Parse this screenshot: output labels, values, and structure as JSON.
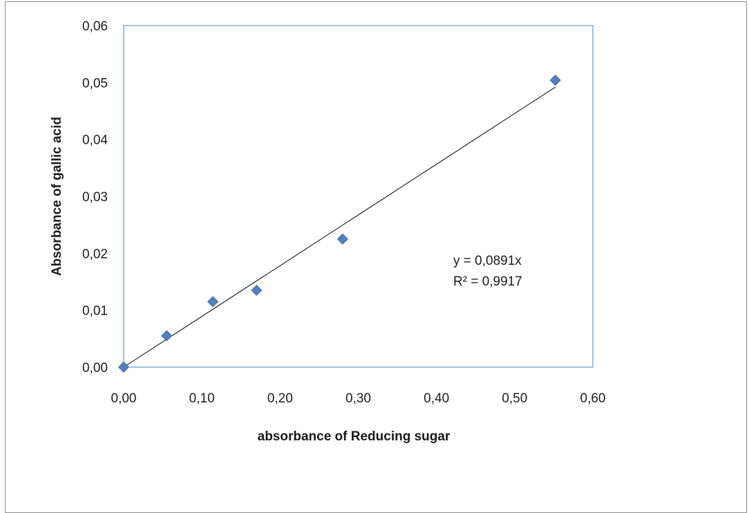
{
  "chart_data": {
    "type": "scatter",
    "title": "",
    "xlabel": "absorbance of Reducing sugar",
    "ylabel": "Absorbance of gallic acid",
    "xlim": [
      0,
      0.6
    ],
    "ylim": [
      0,
      0.06
    ],
    "x_ticks": [
      "0,00",
      "0,10",
      "0,20",
      "0,30",
      "0,40",
      "0,50",
      "0,60"
    ],
    "y_ticks": [
      "0,00",
      "0,01",
      "0,02",
      "0,03",
      "0,04",
      "0,05",
      "0,06"
    ],
    "grid": false,
    "legend": "none",
    "marker": "diamond",
    "colors": {
      "marker": "#4f81bd",
      "plot_border": "#4a7ebb",
      "trendline": "#000000"
    },
    "series": [
      {
        "points": [
          {
            "x": 0.0,
            "y": 0.0
          },
          {
            "x": 0.055,
            "y": 0.0055
          },
          {
            "x": 0.114,
            "y": 0.0115
          },
          {
            "x": 0.17,
            "y": 0.0135
          },
          {
            "x": 0.28,
            "y": 0.0225
          },
          {
            "x": 0.552,
            "y": 0.0504
          }
        ]
      }
    ],
    "trendline": {
      "type": "linear-through-origin",
      "slope": 0.0891,
      "x_range": [
        0,
        0.552
      ],
      "equation": "y = 0,0891x",
      "r_squared": "R² = 0,9917"
    }
  }
}
